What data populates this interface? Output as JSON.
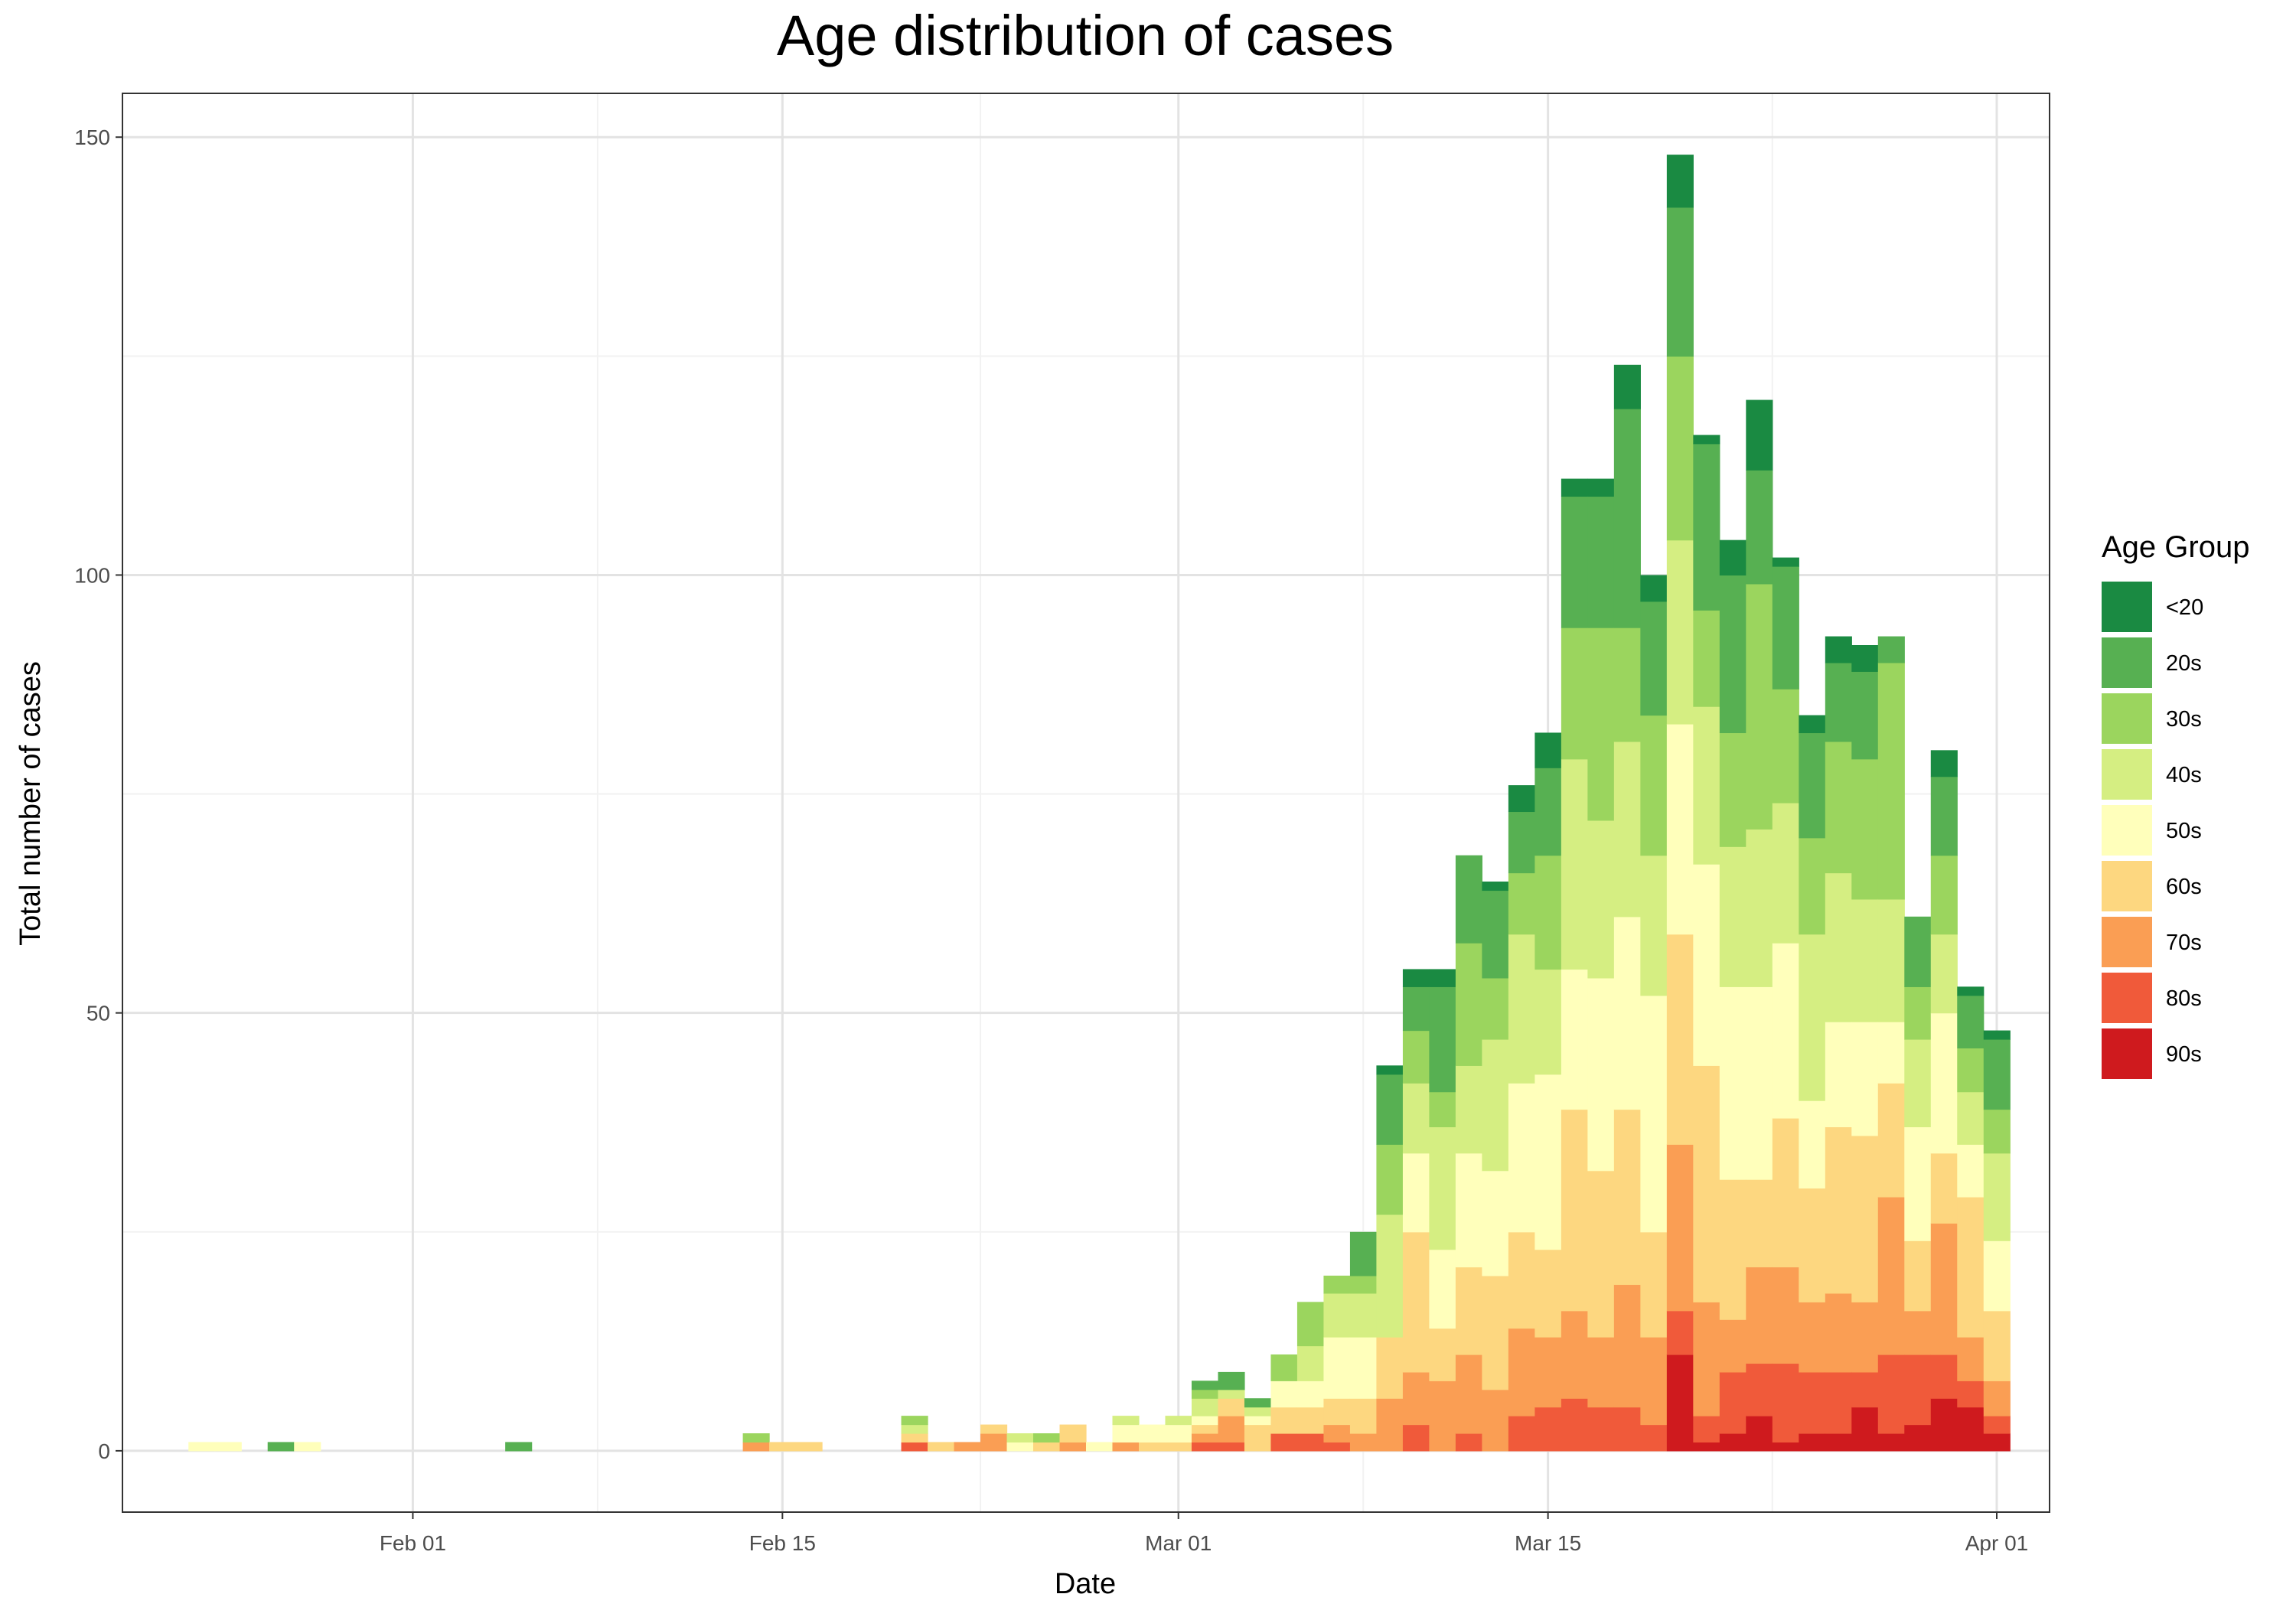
{
  "chart_data": {
    "type": "bar",
    "stacked": true,
    "title": "Age distribution of cases",
    "xlabel": "Date",
    "ylabel": "Total number of cases",
    "x_date_range": [
      "2020-01-21",
      "2020-04-03"
    ],
    "ylim": [
      -7,
      155
    ],
    "y_ticks": [
      0,
      50,
      100,
      150
    ],
    "x_ticks": [
      {
        "date": "2020-02-01",
        "label": "Feb 01"
      },
      {
        "date": "2020-02-15",
        "label": "Feb 15"
      },
      {
        "date": "2020-03-01",
        "label": "Mar 01"
      },
      {
        "date": "2020-03-15",
        "label": "Mar 15"
      },
      {
        "date": "2020-04-01",
        "label": "Apr 01"
      }
    ],
    "grid": true,
    "legend_position": "right",
    "legend_title": "Age Group",
    "stack_order": "90s at bottom, <20 at top",
    "series": [
      {
        "name": "<20",
        "color": "#1A8A42"
      },
      {
        "name": "20s",
        "color": "#57B052"
      },
      {
        "name": "30s",
        "color": "#9BD55E"
      },
      {
        "name": "40s",
        "color": "#D5EE82"
      },
      {
        "name": "50s",
        "color": "#FFFFBB"
      },
      {
        "name": "60s",
        "color": "#FDD780"
      },
      {
        "name": "70s",
        "color": "#FA9E54"
      },
      {
        "name": "80s",
        "color": "#F05A3A"
      },
      {
        "name": "90s",
        "color": "#CF1A1E"
      }
    ],
    "data": [
      {
        "date": "2020-01-24",
        "values": {
          "50s": 1
        }
      },
      {
        "date": "2020-01-25",
        "values": {
          "50s": 1
        }
      },
      {
        "date": "2020-01-27",
        "values": {
          "20s": 1
        }
      },
      {
        "date": "2020-01-28",
        "values": {
          "50s": 1
        }
      },
      {
        "date": "2020-02-05",
        "values": {
          "20s": 1
        }
      },
      {
        "date": "2020-02-14",
        "values": {
          "70s": 1,
          "30s": 1
        }
      },
      {
        "date": "2020-02-15",
        "values": {
          "60s": 1
        }
      },
      {
        "date": "2020-02-16",
        "values": {
          "60s": 1
        }
      },
      {
        "date": "2020-02-20",
        "values": {
          "80s": 1,
          "60s": 1,
          "40s": 1,
          "30s": 1
        }
      },
      {
        "date": "2020-02-21",
        "values": {
          "60s": 1
        }
      },
      {
        "date": "2020-02-22",
        "values": {
          "70s": 1
        }
      },
      {
        "date": "2020-02-23",
        "values": {
          "70s": 2,
          "60s": 1
        }
      },
      {
        "date": "2020-02-24",
        "values": {
          "50s": 1,
          "40s": 1
        }
      },
      {
        "date": "2020-02-25",
        "values": {
          "60s": 1,
          "30s": 1
        }
      },
      {
        "date": "2020-02-26",
        "values": {
          "70s": 1,
          "60s": 2
        }
      },
      {
        "date": "2020-02-27",
        "values": {
          "50s": 1
        }
      },
      {
        "date": "2020-02-28",
        "values": {
          "70s": 1,
          "50s": 2,
          "40s": 1
        }
      },
      {
        "date": "2020-02-29",
        "values": {
          "60s": 1,
          "50s": 2
        }
      },
      {
        "date": "2020-03-01",
        "values": {
          "60s": 1,
          "50s": 2,
          "40s": 1
        }
      },
      {
        "date": "2020-03-02",
        "values": {
          "80s": 1,
          "70s": 1,
          "60s": 1,
          "50s": 1,
          "40s": 2,
          "30s": 1,
          "20s": 1
        }
      },
      {
        "date": "2020-03-03",
        "values": {
          "80s": 1,
          "70s": 3,
          "60s": 2,
          "40s": 1,
          "20s": 2
        }
      },
      {
        "date": "2020-03-04",
        "values": {
          "60s": 3,
          "50s": 1,
          "40s": 1,
          "20s": 1
        }
      },
      {
        "date": "2020-03-05",
        "values": {
          "80s": 2,
          "60s": 3,
          "50s": 3,
          "30s": 3
        }
      },
      {
        "date": "2020-03-06",
        "values": {
          "80s": 2,
          "60s": 3,
          "50s": 3,
          "40s": 4,
          "30s": 5
        }
      },
      {
        "date": "2020-03-07",
        "values": {
          "80s": 1,
          "70s": 2,
          "60s": 3,
          "50s": 7,
          "40s": 5,
          "30s": 2
        }
      },
      {
        "date": "2020-03-08",
        "values": {
          "70s": 2,
          "60s": 4,
          "50s": 7,
          "40s": 5,
          "30s": 2,
          "20s": 5
        }
      },
      {
        "date": "2020-03-09",
        "values": {
          "70s": 6,
          "60s": 7,
          "40s": 14,
          "30s": 8,
          "20s": 8,
          "<20": 1
        }
      },
      {
        "date": "2020-03-10",
        "values": {
          "80s": 3,
          "70s": 6,
          "60s": 16,
          "50s": 9,
          "40s": 8,
          "30s": 6,
          "20s": 5,
          "<20": 2
        }
      },
      {
        "date": "2020-03-11",
        "values": {
          "70s": 8,
          "60s": 6,
          "50s": 9,
          "40s": 14,
          "30s": 4,
          "20s": 12,
          "<20": 2
        }
      },
      {
        "date": "2020-03-12",
        "values": {
          "80s": 2,
          "70s": 9,
          "60s": 10,
          "50s": 13,
          "40s": 10,
          "30s": 14,
          "20s": 10
        }
      },
      {
        "date": "2020-03-13",
        "values": {
          "70s": 7,
          "60s": 13,
          "50s": 12,
          "40s": 15,
          "30s": 7,
          "20s": 10,
          "<20": 1
        }
      },
      {
        "date": "2020-03-14",
        "values": {
          "80s": 4,
          "70s": 10,
          "60s": 11,
          "50s": 17,
          "40s": 17,
          "30s": 7,
          "20s": 7,
          "<20": 3
        }
      },
      {
        "date": "2020-03-15",
        "values": {
          "80s": 5,
          "70s": 8,
          "60s": 10,
          "50s": 20,
          "40s": 12,
          "30s": 13,
          "20s": 10,
          "<20": 4
        }
      },
      {
        "date": "2020-03-16",
        "values": {
          "80s": 6,
          "70s": 10,
          "60s": 23,
          "50s": 16,
          "40s": 24,
          "30s": 15,
          "20s": 15,
          "<20": 2
        }
      },
      {
        "date": "2020-03-17",
        "values": {
          "80s": 5,
          "70s": 8,
          "60s": 19,
          "50s": 22,
          "40s": 18,
          "30s": 22,
          "20s": 15,
          "<20": 2
        }
      },
      {
        "date": "2020-03-18",
        "values": {
          "80s": 5,
          "70s": 14,
          "60s": 20,
          "50s": 22,
          "40s": 20,
          "30s": 13,
          "20s": 25,
          "<20": 5
        }
      },
      {
        "date": "2020-03-19",
        "values": {
          "80s": 3,
          "70s": 10,
          "60s": 12,
          "50s": 27,
          "40s": 16,
          "30s": 16,
          "20s": 13,
          "<20": 3
        }
      },
      {
        "date": "2020-03-20",
        "values": {
          "90s": 11,
          "80s": 5,
          "70s": 19,
          "60s": 24,
          "50s": 24,
          "40s": 21,
          "30s": 21,
          "20s": 17,
          "<20": 6
        }
      },
      {
        "date": "2020-03-21",
        "values": {
          "90s": 1,
          "80s": 3,
          "70s": 13,
          "60s": 27,
          "50s": 23,
          "40s": 18,
          "30s": 11,
          "20s": 19,
          "<20": 1
        }
      },
      {
        "date": "2020-03-22",
        "values": {
          "90s": 2,
          "80s": 7,
          "70s": 6,
          "60s": 16,
          "50s": 22,
          "40s": 16,
          "30s": 13,
          "20s": 18,
          "<20": 4
        }
      },
      {
        "date": "2020-03-23",
        "values": {
          "90s": 4,
          "80s": 6,
          "70s": 11,
          "60s": 10,
          "50s": 22,
          "40s": 18,
          "30s": 28,
          "20s": 13,
          "<20": 8
        }
      },
      {
        "date": "2020-03-24",
        "values": {
          "90s": 1,
          "80s": 9,
          "70s": 11,
          "60s": 17,
          "50s": 20,
          "40s": 16,
          "30s": 13,
          "20s": 14,
          "<20": 1
        }
      },
      {
        "date": "2020-03-25",
        "values": {
          "90s": 2,
          "80s": 7,
          "70s": 8,
          "60s": 13,
          "50s": 10,
          "40s": 19,
          "30s": 11,
          "20s": 12,
          "<20": 2
        }
      },
      {
        "date": "2020-03-26",
        "values": {
          "90s": 2,
          "80s": 7,
          "70s": 9,
          "60s": 19,
          "50s": 12,
          "40s": 17,
          "30s": 15,
          "20s": 9,
          "<20": 3
        }
      },
      {
        "date": "2020-03-27",
        "values": {
          "90s": 5,
          "80s": 4,
          "70s": 8,
          "60s": 19,
          "50s": 13,
          "40s": 14,
          "30s": 16,
          "20s": 10,
          "<20": 3
        }
      },
      {
        "date": "2020-03-28",
        "values": {
          "90s": 2,
          "80s": 9,
          "70s": 18,
          "60s": 13,
          "50s": 7,
          "40s": 14,
          "30s": 27,
          "20s": 3
        }
      },
      {
        "date": "2020-03-29",
        "values": {
          "90s": 3,
          "80s": 8,
          "70s": 5,
          "60s": 8,
          "50s": 13,
          "40s": 10,
          "30s": 6,
          "20s": 8
        }
      },
      {
        "date": "2020-03-30",
        "values": {
          "90s": 6,
          "80s": 5,
          "70s": 15,
          "60s": 8,
          "50s": 16,
          "40s": 9,
          "30s": 9,
          "20s": 9,
          "<20": 3
        }
      },
      {
        "date": "2020-03-31",
        "values": {
          "90s": 5,
          "80s": 3,
          "70s": 5,
          "60s": 16,
          "50s": 6,
          "40s": 6,
          "30s": 5,
          "20s": 6,
          "<20": 1
        }
      },
      {
        "date": "2020-04-01",
        "values": {
          "90s": 2,
          "80s": 2,
          "70s": 4,
          "60s": 8,
          "50s": 8,
          "40s": 10,
          "30s": 5,
          "20s": 8,
          "<20": 1
        }
      }
    ]
  }
}
